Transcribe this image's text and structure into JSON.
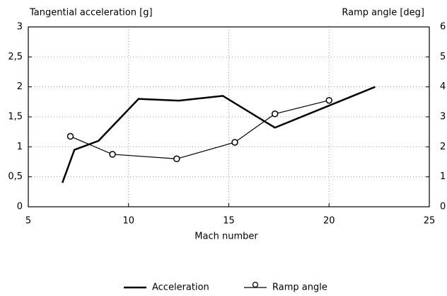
{
  "chart_data": {
    "type": "line",
    "title": "Tangential acceleration [g]",
    "y2_title": "Ramp angle [deg]",
    "xlabel": "Mach number",
    "xlim": [
      5,
      25
    ],
    "xticks": [
      5,
      10,
      15,
      20,
      25
    ],
    "ylim": [
      0,
      3
    ],
    "yticks": [
      0,
      {
        "value": 0.5,
        "label": "0,5"
      },
      1,
      {
        "value": 1.5,
        "label": "1,5"
      },
      2,
      {
        "value": 2.5,
        "label": "2,5"
      },
      3
    ],
    "y2lim": [
      0,
      6
    ],
    "y2ticks": [
      0,
      1,
      2,
      3,
      4,
      5,
      6
    ],
    "grid": true,
    "legend": "bottom",
    "series": [
      {
        "name": "Acceleration",
        "color": "#000000",
        "marker": "none",
        "x": [
          6.7,
          7.3,
          8.5,
          10.5,
          12.5,
          14.7,
          17.3,
          22.3
        ],
        "values": [
          0.4,
          0.95,
          1.1,
          1.8,
          1.77,
          1.85,
          1.32,
          2.0
        ]
      },
      {
        "name": "Ramp angle",
        "color": "#000000",
        "marker": "circle",
        "axis": "y2",
        "x": [
          7.1,
          9.2,
          12.4,
          15.3,
          17.3,
          20
        ],
        "values": [
          2.35,
          1.75,
          1.6,
          2.15,
          3.1,
          3.55
        ]
      }
    ]
  }
}
